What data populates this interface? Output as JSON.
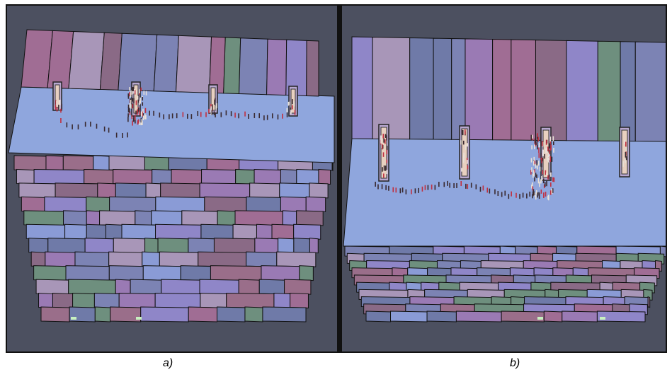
{
  "panels": [
    {
      "id": "a",
      "caption": "a)"
    },
    {
      "id": "b",
      "caption": "b)"
    }
  ],
  "colors": {
    "background": "#4c5060",
    "floor": "#8fa6dd",
    "store_palette": [
      "#6f7aa8",
      "#8f86c8",
      "#a06d94",
      "#9a7ab4",
      "#a896b8",
      "#9a6e8a",
      "#8a6a86",
      "#6e8f7e",
      "#8a9bd6",
      "#7c83b4"
    ],
    "crowd": "#3a2a30"
  }
}
